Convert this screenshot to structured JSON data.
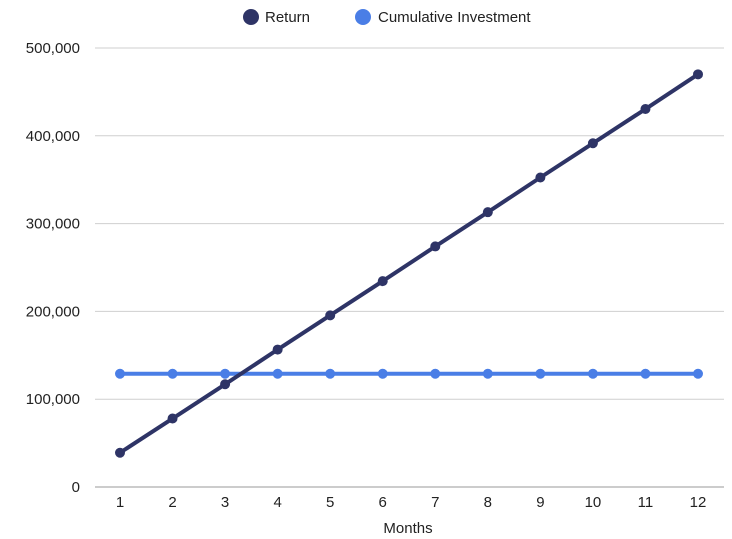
{
  "chart_data": {
    "type": "line",
    "title": "",
    "xlabel": "Months",
    "ylabel": "",
    "x": [
      1,
      2,
      3,
      4,
      5,
      6,
      7,
      8,
      9,
      10,
      11,
      12
    ],
    "x_tick_labels": [
      "1",
      "2",
      "3",
      "4",
      "5",
      "6",
      "7",
      "8",
      "9",
      "10",
      "11",
      "12"
    ],
    "ylim": [
      0,
      500000
    ],
    "y_ticks": [
      0,
      100000,
      200000,
      300000,
      400000,
      500000
    ],
    "y_tick_labels": [
      "0",
      "100,000",
      "200,000",
      "300,000",
      "400,000",
      "500,000"
    ],
    "grid": true,
    "legend_position": "top-center",
    "series": [
      {
        "name": "Return",
        "color": "#2e3466",
        "values": [
          39000,
          78000,
          117000,
          156500,
          195500,
          234500,
          274000,
          313000,
          352500,
          391500,
          430500,
          470000
        ]
      },
      {
        "name": "Cumulative Investment",
        "color": "#4a7ee6",
        "values": [
          129000,
          129000,
          129000,
          129000,
          129000,
          129000,
          129000,
          129000,
          129000,
          129000,
          129000,
          129000
        ]
      }
    ]
  }
}
